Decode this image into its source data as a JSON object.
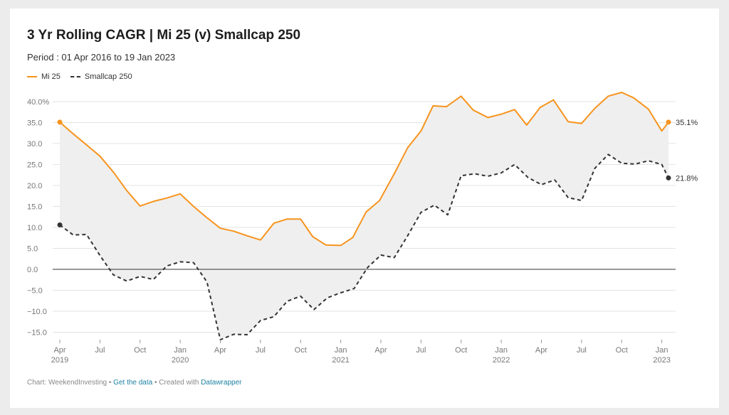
{
  "title": "3 Yr Rolling CAGR | Mi 25 (v) Smallcap 250",
  "subtitle": "Period : 01 Apr 2016 to 19 Jan 2023",
  "colors": {
    "mi25": "#f7941d",
    "smallcap": "#333333",
    "fill": "#efefef",
    "grid": "#e3e3e3",
    "zero": "#333333"
  },
  "footer": {
    "chart_by": "Chart: WeekendInvesting",
    "sep1": " • ",
    "data_link": "Get the data",
    "sep2": " • Created with ",
    "tool_link": "Datawrapper"
  },
  "chart_data": {
    "type": "line",
    "ylim": [
      -17,
      41
    ],
    "grid": true,
    "legend_position": "top-left",
    "y_ticks": [
      40,
      35,
      30,
      25,
      20,
      15,
      10,
      5,
      0,
      -5,
      -10,
      -15
    ],
    "y_tick_labels": [
      "40.0%",
      "35.0",
      "30.0",
      "25.0",
      "20.0",
      "15.0",
      "10.0",
      "5.0",
      "0.0",
      "−5.0",
      "−10.0",
      "−15.0"
    ],
    "x_ticks": [
      {
        "month": 0,
        "label": "Apr",
        "year": "2019"
      },
      {
        "month": 3,
        "label": "Jul",
        "year": ""
      },
      {
        "month": 6,
        "label": "Oct",
        "year": ""
      },
      {
        "month": 9,
        "label": "Jan",
        "year": "2020"
      },
      {
        "month": 12,
        "label": "Apr",
        "year": ""
      },
      {
        "month": 15,
        "label": "Jul",
        "year": ""
      },
      {
        "month": 18,
        "label": "Oct",
        "year": ""
      },
      {
        "month": 21,
        "label": "Jan",
        "year": "2021"
      },
      {
        "month": 24,
        "label": "Apr",
        "year": ""
      },
      {
        "month": 27,
        "label": "Jul",
        "year": ""
      },
      {
        "month": 30,
        "label": "Oct",
        "year": ""
      },
      {
        "month": 33,
        "label": "Jan",
        "year": "2022"
      },
      {
        "month": 36,
        "label": "Apr",
        "year": ""
      },
      {
        "month": 39,
        "label": "Jul",
        "year": ""
      },
      {
        "month": 42,
        "label": "Oct",
        "year": ""
      },
      {
        "month": 45,
        "label": "Jan",
        "year": "2023"
      }
    ],
    "series": [
      {
        "name": "Mi 25",
        "style": "solid",
        "end_label": "35.1%",
        "points": [
          [
            0,
            35.1
          ],
          [
            0.9,
            32.6
          ],
          [
            3,
            27.0
          ],
          [
            4,
            23.2
          ],
          [
            5,
            18.8
          ],
          [
            6,
            15.1
          ],
          [
            7,
            16.2
          ],
          [
            8,
            17.0
          ],
          [
            9,
            18.0
          ],
          [
            10,
            15.0
          ],
          [
            11,
            12.3
          ],
          [
            12,
            9.8
          ],
          [
            13,
            9.1
          ],
          [
            14,
            8.0
          ],
          [
            15,
            7.0
          ],
          [
            16,
            11.0
          ],
          [
            17,
            12.0
          ],
          [
            18,
            12.0
          ],
          [
            18.9,
            7.8
          ],
          [
            19.9,
            5.8
          ],
          [
            21,
            5.7
          ],
          [
            21.9,
            7.6
          ],
          [
            22.9,
            13.7
          ],
          [
            23.9,
            16.4
          ],
          [
            25,
            22.8
          ],
          [
            26,
            29.0
          ],
          [
            27,
            33.0
          ],
          [
            27.9,
            39.0
          ],
          [
            28.9,
            38.8
          ],
          [
            30,
            41.3
          ],
          [
            30.9,
            38.0
          ],
          [
            32,
            36.2
          ],
          [
            33,
            37.0
          ],
          [
            34,
            38.1
          ],
          [
            34.9,
            34.4
          ],
          [
            35.9,
            38.6
          ],
          [
            36.9,
            40.4
          ],
          [
            38,
            35.2
          ],
          [
            39,
            34.8
          ],
          [
            40,
            38.4
          ],
          [
            41,
            41.3
          ],
          [
            42,
            42.2
          ],
          [
            42.9,
            40.9
          ],
          [
            44,
            38.2
          ],
          [
            45,
            33.0
          ],
          [
            45.5,
            35.1
          ]
        ]
      },
      {
        "name": "Smallcap 250",
        "style": "dashed",
        "end_label": "21.8%",
        "points": [
          [
            0,
            10.6
          ],
          [
            1,
            8.2
          ],
          [
            2,
            8.3
          ],
          [
            3,
            3.3
          ],
          [
            4,
            -1.3
          ],
          [
            5,
            -2.8
          ],
          [
            6,
            -1.7
          ],
          [
            7,
            -2.4
          ],
          [
            8,
            0.8
          ],
          [
            9,
            1.8
          ],
          [
            10,
            1.6
          ],
          [
            11,
            -3.0
          ],
          [
            12,
            -16.8
          ],
          [
            13,
            -15.5
          ],
          [
            14,
            -15.6
          ],
          [
            15,
            -12.2
          ],
          [
            16,
            -11.3
          ],
          [
            17,
            -7.6
          ],
          [
            18,
            -6.4
          ],
          [
            19,
            -9.6
          ],
          [
            20,
            -6.8
          ],
          [
            21,
            -5.6
          ],
          [
            22,
            -4.6
          ],
          [
            23,
            0.4
          ],
          [
            24,
            3.4
          ],
          [
            25,
            2.8
          ],
          [
            26,
            8.0
          ],
          [
            27,
            13.6
          ],
          [
            28,
            15.3
          ],
          [
            29,
            13.0
          ],
          [
            30,
            22.3
          ],
          [
            31,
            22.8
          ],
          [
            32,
            22.2
          ],
          [
            33,
            23.0
          ],
          [
            34,
            25.0
          ],
          [
            35,
            21.9
          ],
          [
            36,
            20.2
          ],
          [
            37,
            21.3
          ],
          [
            38,
            17.1
          ],
          [
            39,
            16.4
          ],
          [
            40,
            24.1
          ],
          [
            41,
            27.4
          ],
          [
            42,
            25.3
          ],
          [
            43,
            25.1
          ],
          [
            44,
            25.9
          ],
          [
            45,
            25.0
          ],
          [
            45.5,
            21.8
          ]
        ]
      }
    ]
  }
}
